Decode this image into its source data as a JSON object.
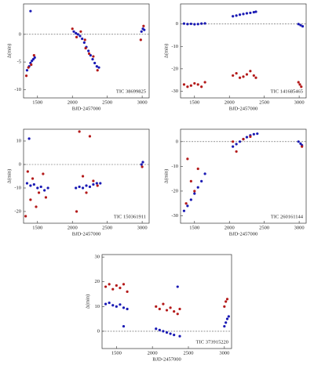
{
  "chart_data": [
    {
      "type": "scatter",
      "x_label": "BJD-2457000",
      "y_label": "Δ(min)",
      "annotation": "TIC 38699825",
      "xlim": [
        1300,
        3100
      ],
      "xticks": [
        1500,
        2000,
        2500,
        3000
      ],
      "ylim": [
        -11.5,
        5.5
      ],
      "yticks": [
        -10,
        -5,
        0
      ],
      "series": [
        {
          "color": "#1a1ab4",
          "x": [
            1350,
            1380,
            1400,
            1420,
            1440,
            1460,
            1400,
            2020,
            2050,
            2080,
            2110,
            2140,
            2170,
            2200,
            2230,
            2260,
            2290,
            2320,
            2350,
            2380,
            2990,
            3010,
            3030
          ],
          "values": [
            -6.5,
            -5.8,
            -5.2,
            -4.8,
            -4.5,
            -4.2,
            4.2,
            0.5,
            0.2,
            0,
            -0.3,
            -0.8,
            -1.5,
            -2.3,
            -3,
            -3.8,
            -4.5,
            -5.2,
            -5.8,
            -6,
            0.5,
            1,
            0.8
          ]
        },
        {
          "color": "#b41a1a",
          "x": [
            1340,
            1370,
            1410,
            1450,
            2000,
            2060,
            2120,
            2180,
            2190,
            2240,
            2300,
            2360,
            2980,
            3020
          ],
          "values": [
            -7.5,
            -6,
            -5.5,
            -3.8,
            1,
            -0.5,
            0.5,
            -1,
            -2.5,
            -3.5,
            -4,
            -6.5,
            -1,
            1.5
          ]
        }
      ]
    },
    {
      "type": "scatter",
      "x_label": "BJD-2457000",
      "y_label": "Δ(min)",
      "annotation": "TIC 141685465",
      "xlim": [
        1300,
        3100
      ],
      "xticks": [
        1500,
        2000,
        2500,
        3000
      ],
      "ylim": [
        -33,
        9
      ],
      "yticks": [
        -30,
        -20,
        -10,
        0
      ],
      "series": [
        {
          "color": "#1a1ab4",
          "x": [
            1350,
            1400,
            1450,
            1500,
            1550,
            1600,
            1650,
            2050,
            2100,
            2150,
            2200,
            2250,
            2300,
            2350,
            2380,
            2990,
            3020,
            3050
          ],
          "values": [
            0.2,
            0,
            0.1,
            -0.1,
            0,
            0.2,
            0.3,
            3.5,
            3.8,
            4.2,
            4.5,
            4.8,
            5,
            5.3,
            5.5,
            0,
            -0.5,
            -1
          ]
        },
        {
          "color": "#b41a1a",
          "x": [
            1350,
            1400,
            1450,
            1500,
            1550,
            1600,
            1650,
            2050,
            2100,
            2150,
            2200,
            2250,
            2300,
            2350,
            2380,
            2990,
            3010,
            3030
          ],
          "values": [
            -27,
            -28,
            -27.5,
            -26.5,
            -27,
            -28,
            -26,
            -23,
            -22,
            -24,
            -23.5,
            -22.5,
            -21,
            -23,
            -24,
            -26,
            -27,
            -28
          ]
        }
      ]
    },
    {
      "type": "scatter",
      "x_label": "BJD-2457000",
      "y_label": "Δ(min)",
      "annotation": "TIC 150361911",
      "xlim": [
        1300,
        3100
      ],
      "xticks": [
        1500,
        2000,
        2500,
        3000
      ],
      "ylim": [
        -25,
        15
      ],
      "yticks": [
        -20,
        -10,
        0,
        10
      ],
      "series": [
        {
          "color": "#1a1ab4",
          "x": [
            1350,
            1400,
            1450,
            1500,
            1550,
            1600,
            1650,
            1380,
            2050,
            2100,
            2150,
            2200,
            2250,
            2300,
            2350,
            2400,
            2990,
            3010
          ],
          "values": [
            -8,
            -9,
            -8.5,
            -10,
            -9.5,
            -11,
            -10,
            11,
            -10,
            -9.5,
            -10,
            -9,
            -9.5,
            -8.5,
            -8,
            -8,
            0,
            1
          ]
        },
        {
          "color": "#b41a1a",
          "x": [
            1330,
            1360,
            1400,
            1430,
            1480,
            1520,
            1580,
            1620,
            2060,
            2100,
            2150,
            2200,
            2250,
            2300,
            2360,
            3000
          ],
          "values": [
            -22,
            -3,
            -15,
            -6,
            -18,
            -12,
            -4,
            -14,
            -20,
            14,
            -5,
            -12,
            12,
            -7,
            -9,
            -1
          ]
        }
      ]
    },
    {
      "type": "scatter",
      "x_label": "BJD-2457000",
      "y_label": "Δ(min)",
      "annotation": "TIC 260161144",
      "xlim": [
        1300,
        3100
      ],
      "xticks": [
        1500,
        2000,
        2500,
        3000
      ],
      "ylim": [
        -33,
        5
      ],
      "yticks": [
        -30,
        -20,
        -10,
        0
      ],
      "series": [
        {
          "color": "#1a1ab4",
          "x": [
            1350,
            1400,
            1450,
            1500,
            1550,
            1600,
            1650,
            2050,
            2100,
            2150,
            2200,
            2250,
            2300,
            2350,
            2400,
            2990,
            3020,
            3040
          ],
          "values": [
            -28,
            -26,
            -23.5,
            -21,
            -18.5,
            -16,
            -13,
            -2,
            -1,
            0,
            1,
            1.8,
            2.5,
            3,
            3.2,
            0,
            -0.8,
            -1.5
          ]
        },
        {
          "color": "#b41a1a",
          "x": [
            1380,
            1400,
            1450,
            1500,
            1550,
            2050,
            2100,
            2200,
            2300,
            3040
          ],
          "values": [
            -25,
            -7,
            -16,
            -20,
            -11,
            0,
            -4,
            1,
            2,
            -2
          ]
        }
      ]
    },
    {
      "type": "scatter",
      "x_label": "BJD-2457000",
      "y_label": "Δ(min)",
      "annotation": "TIC 373915220",
      "xlim": [
        1300,
        3100
      ],
      "xticks": [
        1500,
        2000,
        2500,
        3000
      ],
      "ylim": [
        -7,
        31
      ],
      "yticks": [
        0,
        10,
        20,
        30
      ],
      "series": [
        {
          "color": "#1a1ab4",
          "x": [
            1350,
            1400,
            1450,
            1500,
            1550,
            1600,
            1650,
            1600,
            2050,
            2100,
            2150,
            2200,
            2250,
            2300,
            2350,
            2380,
            3000,
            3020,
            3040,
            3060
          ],
          "values": [
            11,
            11.5,
            10.5,
            10,
            10.8,
            9.5,
            9,
            2,
            1,
            0.5,
            0,
            -0.5,
            -1,
            -1.5,
            18,
            -2,
            2,
            3.5,
            5,
            6
          ]
        },
        {
          "color": "#b41a1a",
          "x": [
            1350,
            1400,
            1450,
            1500,
            1550,
            1600,
            1650,
            2050,
            2100,
            2150,
            2200,
            2250,
            2300,
            2350,
            2380,
            3000,
            3020,
            3040
          ],
          "values": [
            18,
            19,
            17,
            18.5,
            17.5,
            19,
            16,
            10,
            9,
            11,
            8.5,
            9.5,
            8,
            7,
            9,
            10,
            12,
            13
          ]
        }
      ]
    }
  ]
}
